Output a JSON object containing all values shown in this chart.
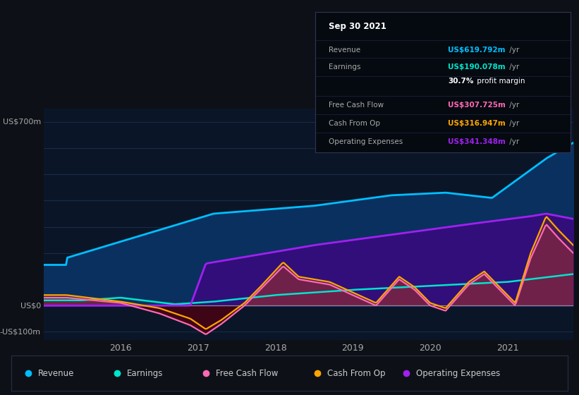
{
  "bg_color": "#0d1117",
  "plot_bg_color": "#0a1628",
  "ylabel_700": "US$700m",
  "ylabel_0": "US$0",
  "ylabel_neg100": "-US$100m",
  "x_ticks": [
    2016,
    2017,
    2018,
    2019,
    2020,
    2021
  ],
  "legend_items": [
    {
      "label": "Revenue",
      "color": "#00bfff"
    },
    {
      "label": "Earnings",
      "color": "#00e5cc"
    },
    {
      "label": "Free Cash Flow",
      "color": "#ff69b4"
    },
    {
      "label": "Cash From Op",
      "color": "#ffa500"
    },
    {
      "label": "Operating Expenses",
      "color": "#a020f0"
    }
  ],
  "info_box_date": "Sep 30 2021",
  "info_rows": [
    {
      "label": "Revenue",
      "value": "US$619.792m",
      "suffix": " /yr",
      "value_color": "#00bfff"
    },
    {
      "label": "Earnings",
      "value": "US$190.078m",
      "suffix": " /yr",
      "value_color": "#00e5cc"
    },
    {
      "label": "",
      "value": "30.7%",
      "suffix": " profit margin",
      "value_color": "#ffffff",
      "bold": true
    },
    {
      "label": "Free Cash Flow",
      "value": "US$307.725m",
      "suffix": " /yr",
      "value_color": "#ff69b4"
    },
    {
      "label": "Cash From Op",
      "value": "US$316.947m",
      "suffix": " /yr",
      "value_color": "#ffa500"
    },
    {
      "label": "Operating Expenses",
      "value": "US$341.348m",
      "suffix": " /yr",
      "value_color": "#a020f0"
    }
  ],
  "revenue_color": "#00bfff",
  "earnings_color": "#00e5cc",
  "fcf_color": "#ff69b4",
  "cashop_color": "#ffa500",
  "opex_color": "#a020f0",
  "ylim_min": -130,
  "ylim_max": 750,
  "xmin": 2015.0,
  "xmax": 2021.85
}
